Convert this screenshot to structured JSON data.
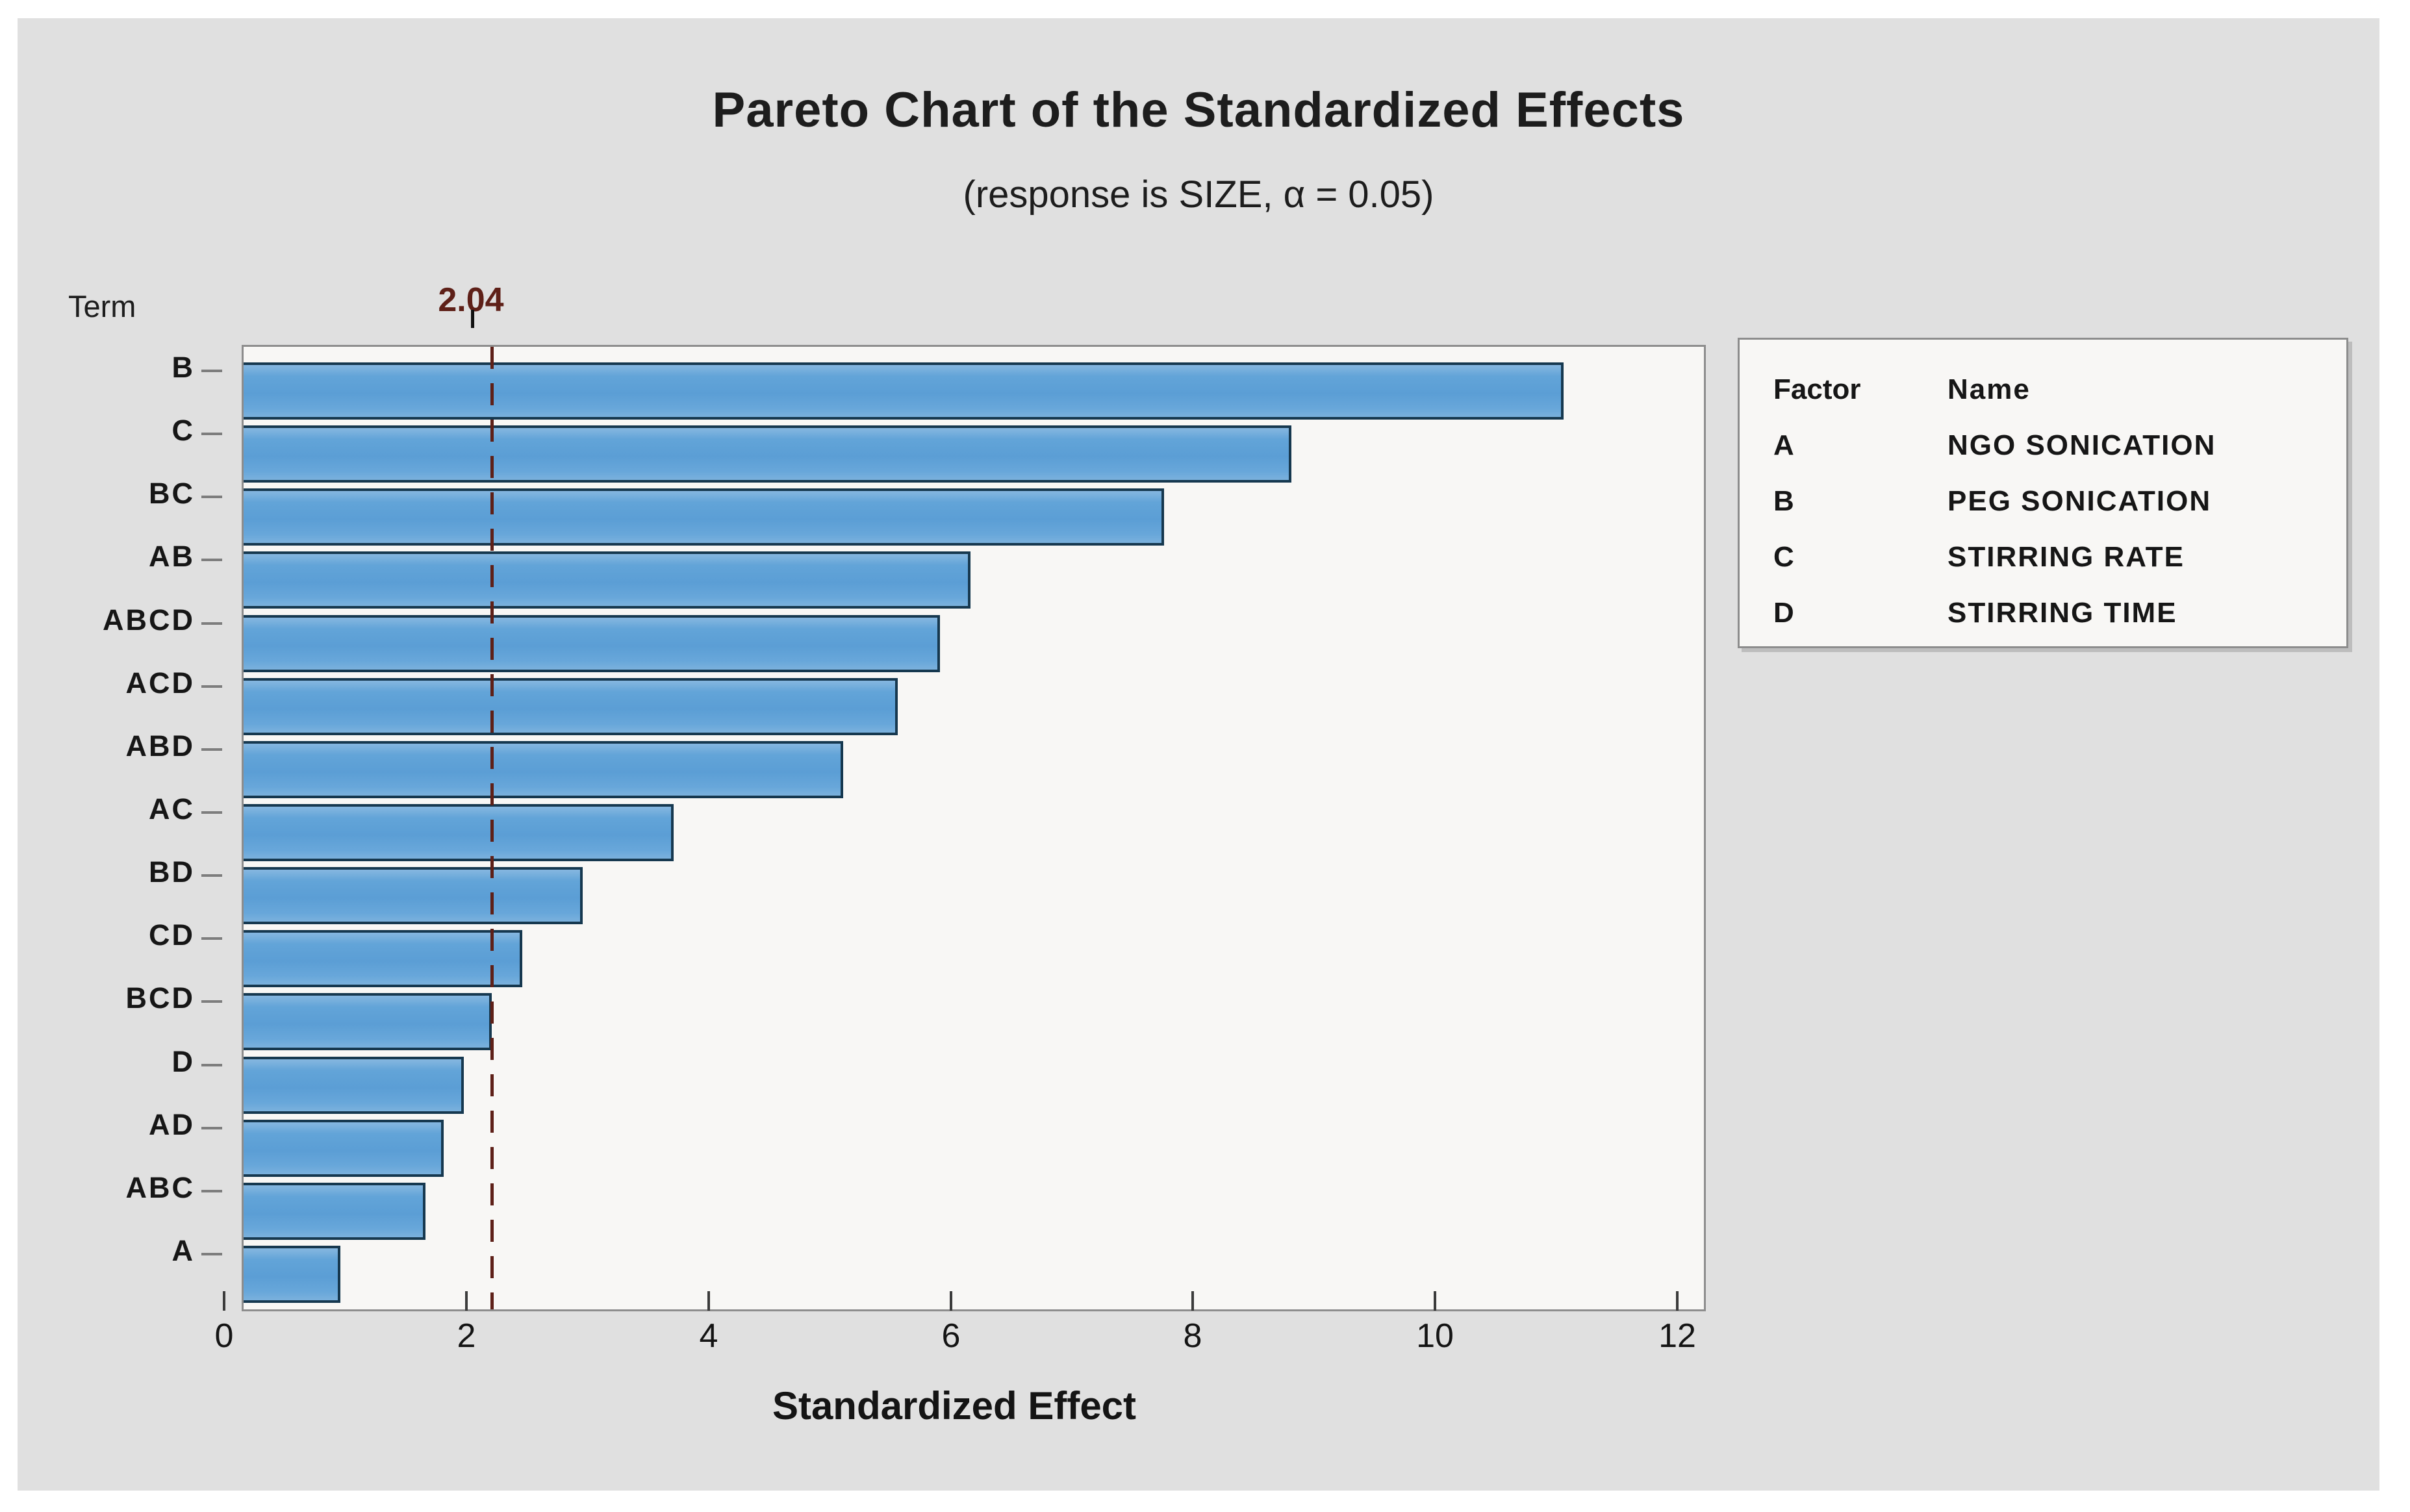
{
  "title": "Pareto Chart of the Standardized Effects",
  "subtitle": "(response is SIZE, α = 0.05)",
  "y_axis_caption": "Term",
  "chart_data": {
    "type": "bar",
    "orientation": "horizontal",
    "title": "Pareto Chart of the Standardized Effects",
    "subtitle": "(response is SIZE, α = 0.05)",
    "categories": [
      "B",
      "C",
      "BC",
      "AB",
      "ABCD",
      "ACD",
      "ABD",
      "AC",
      "BD",
      "CD",
      "BCD",
      "D",
      "AD",
      "ABC",
      "A"
    ],
    "values": [
      10.9,
      8.65,
      7.6,
      6.0,
      5.75,
      5.4,
      4.95,
      3.55,
      2.8,
      2.3,
      2.05,
      1.82,
      1.65,
      1.5,
      0.8
    ],
    "xlabel": "Standardized Effect",
    "ylabel": "Term",
    "xticks": [
      0,
      2,
      4,
      6,
      8,
      10,
      12
    ],
    "xlim": [
      0,
      12
    ],
    "grid": false,
    "legend_position": "right",
    "reference_line": {
      "value": 2.04,
      "label": "2.04"
    }
  },
  "legend": {
    "header": {
      "factor": "Factor",
      "name": "Name"
    },
    "rows": [
      {
        "factor": "A",
        "name": "NGO SONICATION"
      },
      {
        "factor": "B",
        "name": "PEG SONICATION"
      },
      {
        "factor": "C",
        "name": "STIRRING RATE"
      },
      {
        "factor": "D",
        "name": "STIRRING TIME"
      }
    ]
  },
  "colors": {
    "panel_bg": "#e0e0e0",
    "plot_bg": "#f8f7f5",
    "bar_fill": "#5b9ed5",
    "bar_border": "#16384f",
    "frame_border": "#8d8d8d",
    "reference_line": "#5e2018",
    "text": "#1d1d1d"
  }
}
